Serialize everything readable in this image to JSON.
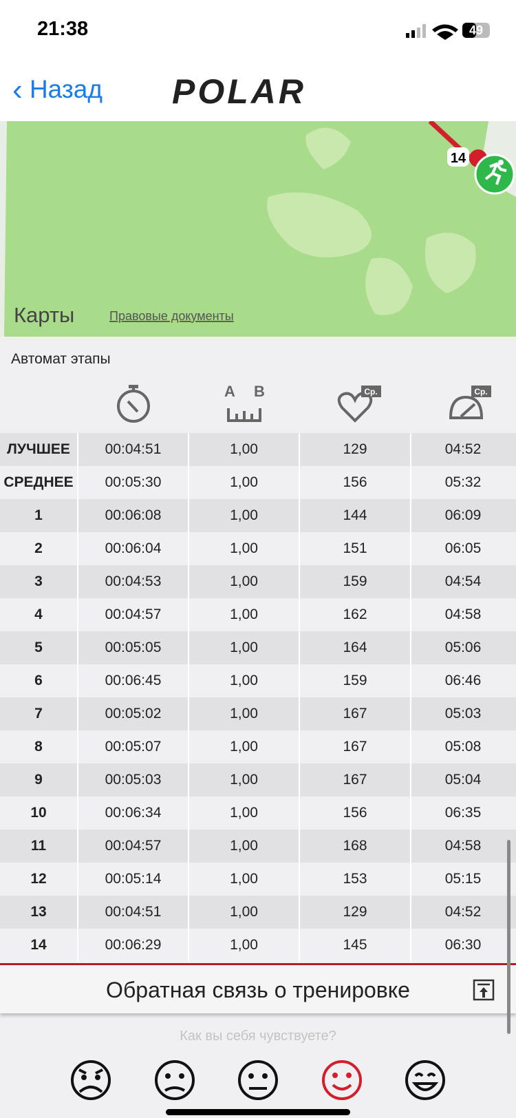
{
  "status": {
    "time": "21:38",
    "battery": "49"
  },
  "nav": {
    "back": "Назад",
    "logo": "POLAR"
  },
  "map": {
    "marker": "14",
    "attribution": "Карты",
    "legal": "Правовые документы"
  },
  "section_title": "Автомат этапы",
  "header": {
    "distance_a": "A",
    "distance_b": "B",
    "hr_badge": "Ср.",
    "pace_badge": "Ср."
  },
  "table": {
    "rows": [
      [
        "ЛУЧШЕЕ",
        "00:04:51",
        "1,00",
        "129",
        "04:52"
      ],
      [
        "СРЕДНЕЕ",
        "00:05:30",
        "1,00",
        "156",
        "05:32"
      ],
      [
        "1",
        "00:06:08",
        "1,00",
        "144",
        "06:09"
      ],
      [
        "2",
        "00:06:04",
        "1,00",
        "151",
        "06:05"
      ],
      [
        "3",
        "00:04:53",
        "1,00",
        "159",
        "04:54"
      ],
      [
        "4",
        "00:04:57",
        "1,00",
        "162",
        "04:58"
      ],
      [
        "5",
        "00:05:05",
        "1,00",
        "164",
        "05:06"
      ],
      [
        "6",
        "00:06:45",
        "1,00",
        "159",
        "06:46"
      ],
      [
        "7",
        "00:05:02",
        "1,00",
        "167",
        "05:03"
      ],
      [
        "8",
        "00:05:07",
        "1,00",
        "167",
        "05:08"
      ],
      [
        "9",
        "00:05:03",
        "1,00",
        "167",
        "05:04"
      ],
      [
        "10",
        "00:06:34",
        "1,00",
        "156",
        "06:35"
      ],
      [
        "11",
        "00:04:57",
        "1,00",
        "168",
        "04:58"
      ],
      [
        "12",
        "00:05:14",
        "1,00",
        "153",
        "05:15"
      ],
      [
        "13",
        "00:04:51",
        "1,00",
        "129",
        "04:52"
      ],
      [
        "14",
        "00:06:29",
        "1,00",
        "145",
        "06:30"
      ]
    ]
  },
  "feedback": {
    "title": "Обратная связь о тренировке",
    "question": "Как вы себя чувствуете?"
  }
}
